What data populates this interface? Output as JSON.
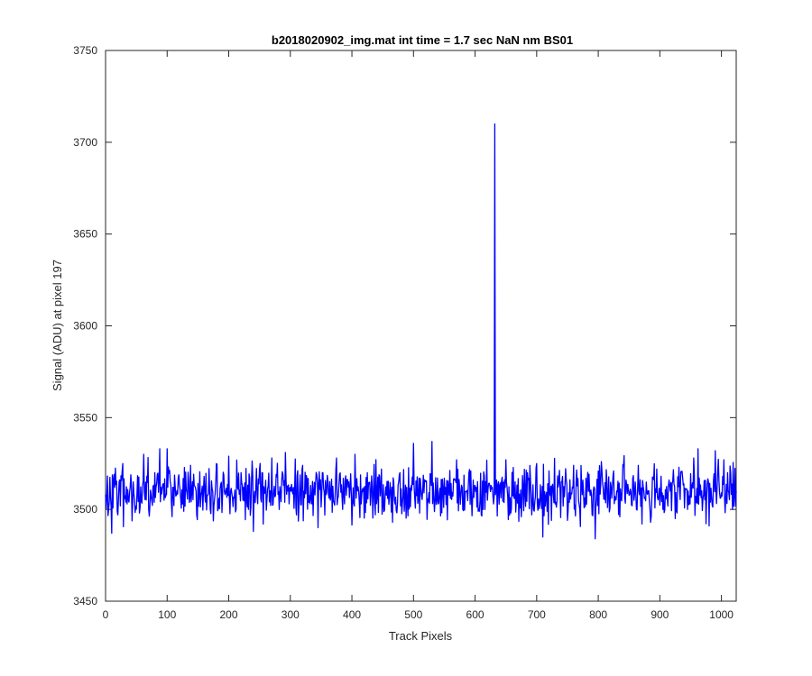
{
  "chart_data": {
    "type": "line",
    "title": "b2018020902_img.mat int time = 1.7 sec  NaN nm BS01",
    "xlabel": "Track Pixels",
    "ylabel": "Signal (ADU) at pixel 197",
    "xlim": [
      0,
      1024
    ],
    "ylim": [
      3450,
      3750
    ],
    "x_ticks": [
      0,
      100,
      200,
      300,
      400,
      500,
      600,
      700,
      800,
      900,
      1000
    ],
    "y_ticks": [
      3450,
      3500,
      3550,
      3600,
      3650,
      3700,
      3750
    ],
    "grid": false,
    "legend": "none",
    "series": [
      {
        "color": "#0000ff",
        "baseline": 3510,
        "noise_range": [
          3484,
          3536
        ],
        "points": [
          [
            0,
            3508
          ],
          [
            5,
            3500
          ],
          [
            10,
            3487
          ],
          [
            15,
            3512
          ],
          [
            20,
            3497
          ],
          [
            28,
            3525
          ],
          [
            35,
            3503
          ],
          [
            45,
            3515
          ],
          [
            55,
            3498
          ],
          [
            62,
            3530
          ],
          [
            70,
            3500
          ],
          [
            80,
            3520
          ],
          [
            88,
            3533
          ],
          [
            95,
            3505
          ],
          [
            100,
            3533
          ],
          [
            110,
            3512
          ],
          [
            125,
            3503
          ],
          [
            138,
            3524
          ],
          [
            148,
            3497
          ],
          [
            160,
            3518
          ],
          [
            170,
            3500
          ],
          [
            180,
            3525
          ],
          [
            190,
            3508
          ],
          [
            200,
            3529
          ],
          [
            212,
            3500
          ],
          [
            220,
            3520
          ],
          [
            232,
            3500
          ],
          [
            240,
            3488
          ],
          [
            250,
            3522
          ],
          [
            262,
            3505
          ],
          [
            270,
            3528
          ],
          [
            282,
            3500
          ],
          [
            292,
            3531
          ],
          [
            300,
            3512
          ],
          [
            310,
            3497
          ],
          [
            320,
            3524
          ],
          [
            335,
            3503
          ],
          [
            345,
            3490
          ],
          [
            352,
            3520
          ],
          [
            365,
            3505
          ],
          [
            375,
            3528
          ],
          [
            385,
            3500
          ],
          [
            395,
            3515
          ],
          [
            405,
            3530
          ],
          [
            415,
            3503
          ],
          [
            425,
            3520
          ],
          [
            438,
            3497
          ],
          [
            448,
            3522
          ],
          [
            458,
            3506
          ],
          [
            466,
            3493
          ],
          [
            478,
            3520
          ],
          [
            490,
            3503
          ],
          [
            500,
            3536
          ],
          [
            510,
            3498
          ],
          [
            520,
            3515
          ],
          [
            530,
            3537
          ],
          [
            540,
            3503
          ],
          [
            550,
            3517
          ],
          [
            560,
            3506
          ],
          [
            570,
            3527
          ],
          [
            580,
            3500
          ],
          [
            590,
            3520
          ],
          [
            600,
            3513
          ],
          [
            610,
            3497
          ],
          [
            620,
            3505
          ],
          [
            628,
            3512
          ],
          [
            630,
            3503
          ],
          [
            632,
            3710
          ],
          [
            633,
            3508
          ],
          [
            640,
            3513
          ],
          [
            650,
            3527
          ],
          [
            658,
            3498
          ],
          [
            665,
            3515
          ],
          [
            675,
            3496
          ],
          [
            685,
            3520
          ],
          [
            692,
            3497
          ],
          [
            700,
            3525
          ],
          [
            710,
            3485
          ],
          [
            720,
            3521
          ],
          [
            730,
            3503
          ],
          [
            740,
            3515
          ],
          [
            750,
            3494
          ],
          [
            760,
            3524
          ],
          [
            770,
            3500
          ],
          [
            780,
            3517
          ],
          [
            790,
            3497
          ],
          [
            795,
            3484
          ],
          [
            805,
            3526
          ],
          [
            815,
            3501
          ],
          [
            825,
            3521
          ],
          [
            835,
            3496
          ],
          [
            845,
            3516
          ],
          [
            855,
            3502
          ],
          [
            865,
            3524
          ],
          [
            875,
            3506
          ],
          [
            885,
            3493
          ],
          [
            895,
            3522
          ],
          [
            905,
            3500
          ],
          [
            915,
            3516
          ],
          [
            925,
            3495
          ],
          [
            935,
            3520
          ],
          [
            945,
            3500
          ],
          [
            955,
            3528
          ],
          [
            962,
            3533
          ],
          [
            970,
            3506
          ],
          [
            980,
            3491
          ],
          [
            990,
            3532
          ],
          [
            1000,
            3509
          ],
          [
            1010,
            3520
          ],
          [
            1018,
            3500
          ],
          [
            1024,
            3510
          ]
        ]
      }
    ]
  }
}
